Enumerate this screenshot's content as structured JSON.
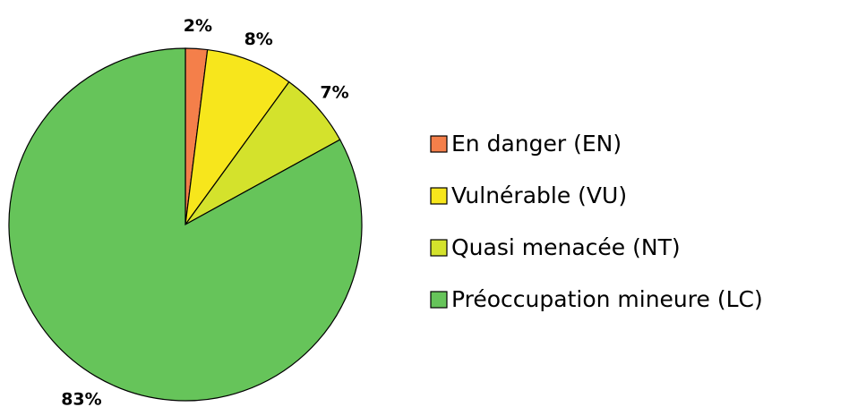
{
  "chart_data": {
    "type": "pie",
    "categories": [
      "En danger (EN)",
      "Vulnérable (VU)",
      "Quasi menacée (NT)",
      "Préoccupation mineure (LC)"
    ],
    "values": [
      2,
      8,
      7,
      83
    ],
    "value_labels": [
      "2%",
      "8%",
      "7%",
      "83%"
    ],
    "colors": [
      "#f47f4a",
      "#f7e61c",
      "#d4e22c",
      "#66c45a"
    ],
    "legend": "right"
  }
}
